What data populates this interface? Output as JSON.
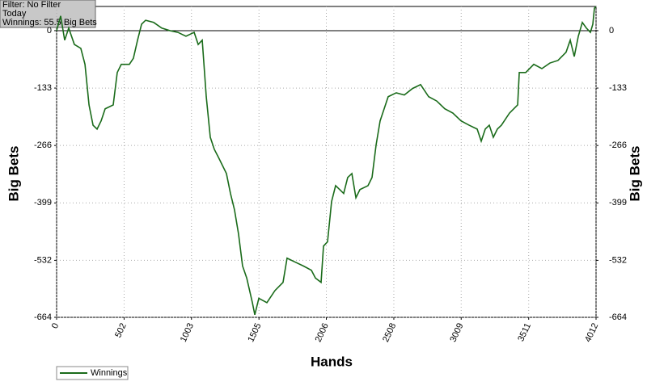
{
  "chart_data": {
    "type": "line",
    "info": [
      "Filter: No Filter",
      "Today",
      "Winnings: 55.5 Big Bets"
    ],
    "xlabel": "Hands",
    "ylabel": "Big Bets",
    "xlim": [
      0,
      4012
    ],
    "xticks": [
      0,
      502,
      1003,
      1505,
      2006,
      2508,
      3009,
      3511,
      4012
    ],
    "ylim": [
      -664,
      56
    ],
    "yticks": [
      0,
      -133,
      -266,
      -399,
      -532,
      -664
    ],
    "grid": true,
    "legend": "bottom-left",
    "series": [
      {
        "name": "Winnings",
        "color": "#1a6b1a",
        "x": [
          0,
          30,
          60,
          90,
          132,
          180,
          211,
          241,
          271,
          301,
          331,
          361,
          421,
          451,
          481,
          541,
          571,
          602,
          632,
          662,
          722,
          782,
          842,
          902,
          962,
          1023,
          1053,
          1083,
          1113,
          1143,
          1173,
          1203,
          1263,
          1293,
          1323,
          1353,
          1383,
          1414,
          1456,
          1474,
          1504,
          1564,
          1624,
          1684,
          1714,
          1774,
          1835,
          1895,
          1925,
          1967,
          1985,
          2015,
          2045,
          2075,
          2105,
          2135,
          2165,
          2196,
          2226,
          2256,
          2316,
          2346,
          2376,
          2406,
          2466,
          2526,
          2586,
          2647,
          2707,
          2767,
          2827,
          2887,
          2947,
          3008,
          3068,
          3128,
          3158,
          3188,
          3218,
          3248,
          3278,
          3308,
          3368,
          3429,
          3441,
          3489,
          3549,
          3609,
          3669,
          3729,
          3789,
          3820,
          3850,
          3880,
          3910,
          3940,
          3970,
          3988,
          4000,
          4012
        ],
        "values": [
          0,
          34,
          -22,
          6,
          -32,
          -41,
          -78,
          -172,
          -219,
          -228,
          -209,
          -181,
          -172,
          -97,
          -78,
          -78,
          -64,
          -22,
          15,
          24,
          19,
          6,
          0,
          -4,
          -13,
          -4,
          -32,
          -22,
          -153,
          -247,
          -275,
          -293,
          -331,
          -377,
          -415,
          -471,
          -545,
          -573,
          -630,
          -658,
          -620,
          -630,
          -602,
          -583,
          -527,
          -536,
          -545,
          -555,
          -573,
          -583,
          -499,
          -489,
          -396,
          -359,
          -368,
          -377,
          -340,
          -331,
          -387,
          -368,
          -359,
          -340,
          -265,
          -209,
          -153,
          -144,
          -149,
          -134,
          -125,
          -153,
          -163,
          -181,
          -191,
          -209,
          -219,
          -228,
          -256,
          -228,
          -219,
          -247,
          -228,
          -219,
          -191,
          -172,
          -97,
          -97,
          -78,
          -88,
          -75,
          -69,
          -50,
          -22,
          -60,
          -13,
          19,
          6,
          -4,
          15,
          52,
          55.5
        ]
      }
    ]
  }
}
